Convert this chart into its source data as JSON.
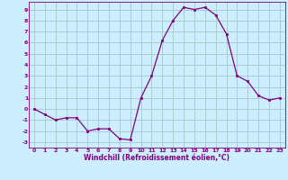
{
  "x": [
    0,
    1,
    2,
    3,
    4,
    5,
    6,
    7,
    8,
    9,
    10,
    11,
    12,
    13,
    14,
    15,
    16,
    17,
    18,
    19,
    20,
    21,
    22,
    23
  ],
  "y": [
    0.0,
    -0.5,
    -1.0,
    -0.8,
    -0.8,
    -2.0,
    -1.8,
    -1.8,
    -2.7,
    -2.8,
    1.0,
    3.0,
    6.2,
    8.0,
    9.2,
    9.0,
    9.2,
    8.5,
    6.8,
    3.0,
    2.5,
    1.2,
    0.8,
    1.0
  ],
  "line_color": "#800080",
  "marker_color": "#800080",
  "bg_color": "#cceeff",
  "grid_color": "#aacccc",
  "xlabel": "Windchill (Refroidissement éolien,°C)",
  "xlabel_color": "#800080",
  "ylabel_ticks": [
    -3,
    -2,
    -1,
    0,
    1,
    2,
    3,
    4,
    5,
    6,
    7,
    8,
    9
  ],
  "xticks": [
    0,
    1,
    2,
    3,
    4,
    5,
    6,
    7,
    8,
    9,
    10,
    11,
    12,
    13,
    14,
    15,
    16,
    17,
    18,
    19,
    20,
    21,
    22,
    23
  ],
  "ylim": [
    -3.5,
    9.7
  ],
  "xlim": [
    -0.5,
    23.5
  ]
}
